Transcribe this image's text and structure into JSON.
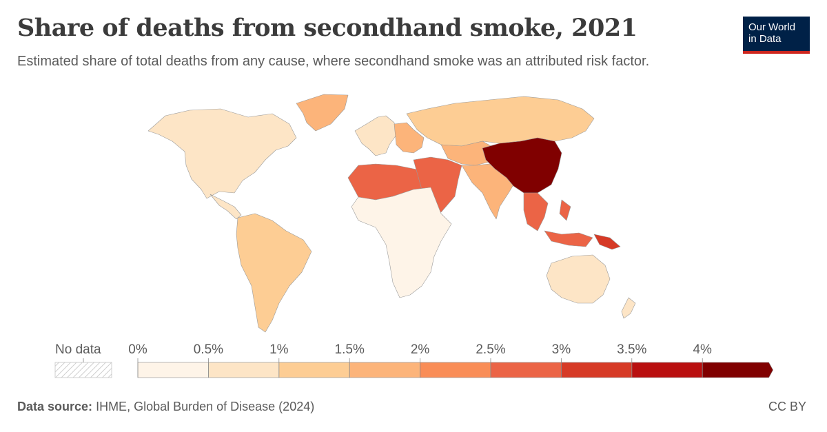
{
  "header": {
    "title": "Share of deaths from secondhand smoke, 2021",
    "subtitle": "Estimated share of total deaths from any cause, where secondhand smoke was an attributed risk factor."
  },
  "logo": {
    "line1": "Our World",
    "line2": "in Data"
  },
  "legend": {
    "no_data_label": "No data",
    "bins": [
      {
        "label": "0%",
        "color": "#fef4e8"
      },
      {
        "label": "0.5%",
        "color": "#fde5c6"
      },
      {
        "label": "1%",
        "color": "#fdcd94"
      },
      {
        "label": "1.5%",
        "color": "#fcb47a"
      },
      {
        "label": "2%",
        "color": "#f98d57"
      },
      {
        "label": "2.5%",
        "color": "#eb6446"
      },
      {
        "label": "3%",
        "color": "#d63a26"
      },
      {
        "label": "3.5%",
        "color": "#b90f0f"
      },
      {
        "label": "4%",
        "color": "#800000"
      }
    ]
  },
  "footer": {
    "source_label": "Data source:",
    "source_text": "IHME, Global Burden of Disease (2024)",
    "license": "CC BY"
  },
  "chart_data": {
    "type": "choropleth",
    "title": "Share of deaths from secondhand smoke, 2021",
    "unit": "%",
    "scale_breaks": [
      0,
      0.5,
      1,
      1.5,
      2,
      2.5,
      3,
      3.5,
      4
    ],
    "regions": [
      {
        "name": "North America",
        "bin": 1,
        "color": "#fde5c6"
      },
      {
        "name": "Greenland",
        "bin": 3,
        "color": "#fcb47a"
      },
      {
        "name": "South America",
        "bin": 2,
        "color": "#fdcd94"
      },
      {
        "name": "Western Europe",
        "bin": 1,
        "color": "#fde5c6"
      },
      {
        "name": "Eastern Europe",
        "bin": 3,
        "color": "#fcb47a"
      },
      {
        "name": "Russia",
        "bin": 2,
        "color": "#fdcd94"
      },
      {
        "name": "North Africa",
        "bin": 5,
        "color": "#eb6446"
      },
      {
        "name": "Middle East",
        "bin": 5,
        "color": "#eb6446"
      },
      {
        "name": "Sub-Saharan Africa",
        "bin": 0,
        "color": "#fef4e8"
      },
      {
        "name": "Central Asia",
        "bin": 3,
        "color": "#fcb47a"
      },
      {
        "name": "South Asia",
        "bin": 3,
        "color": "#fcb47a"
      },
      {
        "name": "China",
        "bin": 8,
        "color": "#800000"
      },
      {
        "name": "Southeast Asia",
        "bin": 5,
        "color": "#eb6446"
      },
      {
        "name": "Papua New Guinea",
        "bin": 6,
        "color": "#d63a26"
      },
      {
        "name": "Australia",
        "bin": 1,
        "color": "#fde5c6"
      },
      {
        "name": "New Zealand",
        "bin": 1,
        "color": "#fde5c6"
      }
    ]
  }
}
